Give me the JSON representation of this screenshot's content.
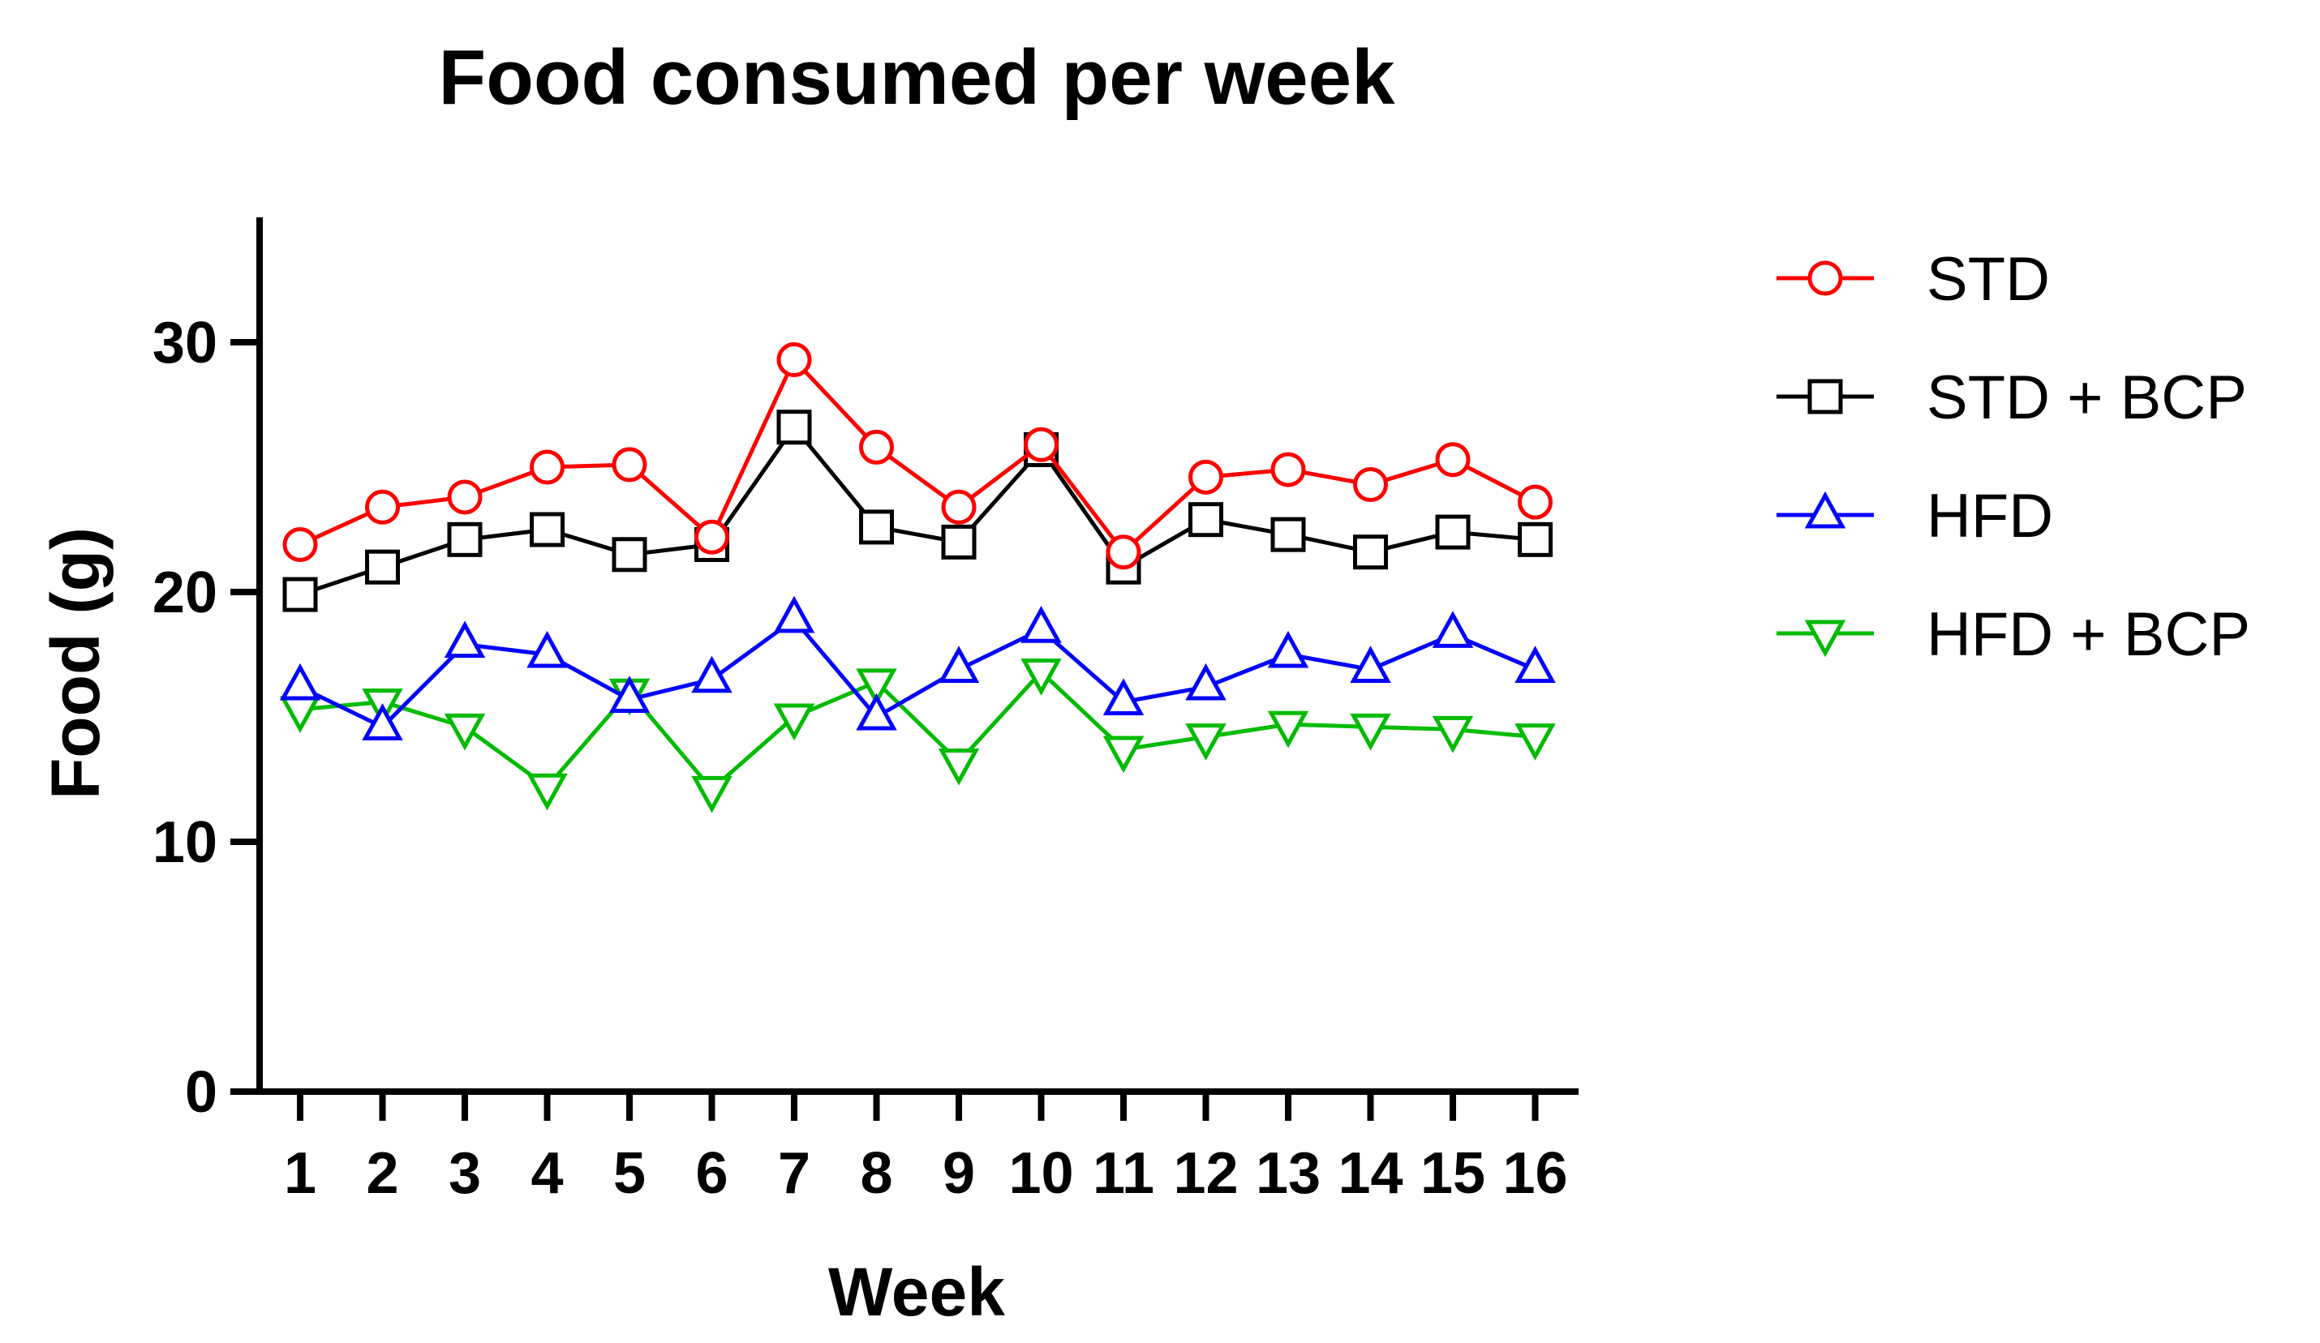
{
  "chart_data": {
    "type": "line",
    "title": "Food consumed per week",
    "xlabel": "Week",
    "ylabel": "Food (g)",
    "x": [
      1,
      2,
      3,
      4,
      5,
      6,
      7,
      8,
      9,
      10,
      11,
      12,
      13,
      14,
      15,
      16
    ],
    "x_tick_labels": [
      "1",
      "2",
      "3",
      "4",
      "5",
      "6",
      "7",
      "8",
      "9",
      "10",
      "11",
      "12",
      "13",
      "14",
      "15",
      "16"
    ],
    "y_ticks": [
      0,
      10,
      20,
      30
    ],
    "y_tick_labels": [
      "0",
      "10",
      "20",
      "30"
    ],
    "ylim": [
      0,
      35
    ],
    "grid": false,
    "legend_position": "right",
    "series": [
      {
        "name": "STD",
        "color": "#ff0000",
        "marker": "circle",
        "values": [
          21.9,
          23.4,
          23.8,
          25.0,
          25.1,
          22.2,
          29.3,
          25.8,
          23.4,
          25.9,
          21.6,
          24.6,
          24.9,
          24.3,
          25.3,
          23.6
        ]
      },
      {
        "name": "STD + BCP",
        "color": "#000000",
        "marker": "square",
        "values": [
          19.9,
          21.0,
          22.1,
          22.5,
          21.5,
          21.9,
          26.6,
          22.6,
          22.0,
          25.7,
          21.0,
          22.9,
          22.3,
          21.6,
          22.4,
          22.1
        ]
      },
      {
        "name": "HFD",
        "color": "#0000ff",
        "marker": "triangle-up",
        "values": [
          16.2,
          14.6,
          17.9,
          17.5,
          15.7,
          16.5,
          18.9,
          15.0,
          16.9,
          18.5,
          15.6,
          16.2,
          17.5,
          16.9,
          18.3,
          16.9
        ]
      },
      {
        "name": "HFD + BCP",
        "color": "#00bb00",
        "marker": "triangle-down",
        "values": [
          15.3,
          15.6,
          14.6,
          12.2,
          16.0,
          12.1,
          15.0,
          16.4,
          13.2,
          16.8,
          13.7,
          14.2,
          14.7,
          14.6,
          14.5,
          14.2
        ]
      }
    ]
  }
}
